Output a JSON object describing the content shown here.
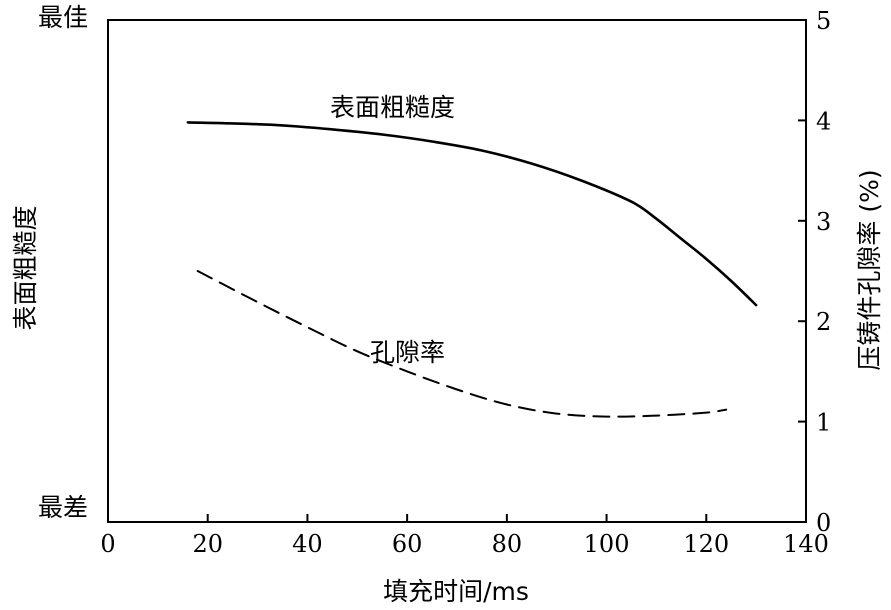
{
  "chart_data": {
    "type": "line",
    "title": "",
    "xlabel": "填充时间/ms",
    "ylabel_left": "表面粗糙度",
    "ylabel_right": "压铸件孔隙率 (%)",
    "left_axis_labels": {
      "top": "最佳",
      "bottom": "最差"
    },
    "xlim": [
      0,
      140
    ],
    "xticks": [
      0,
      20,
      40,
      60,
      80,
      100,
      120,
      140
    ],
    "ylim_right": [
      0,
      5
    ],
    "yticks_right": [
      0,
      1,
      2,
      3,
      4,
      5
    ],
    "grid": false,
    "series": [
      {
        "name": "表面粗糙度",
        "style": "solid",
        "axis": "right",
        "x": [
          16,
          25,
          35,
          45,
          55,
          65,
          75,
          85,
          95,
          105,
          110,
          115,
          120,
          125,
          130
        ],
        "y": [
          3.98,
          3.97,
          3.95,
          3.91,
          3.86,
          3.79,
          3.7,
          3.57,
          3.4,
          3.19,
          3.02,
          2.82,
          2.62,
          2.4,
          2.16
        ]
      },
      {
        "name": "孔隙率",
        "style": "dashed",
        "axis": "right",
        "x": [
          18,
          30,
          40,
          50,
          60,
          70,
          80,
          90,
          100,
          110,
          120,
          124
        ],
        "y": [
          2.5,
          2.19,
          1.94,
          1.7,
          1.5,
          1.32,
          1.17,
          1.08,
          1.05,
          1.06,
          1.09,
          1.12
        ]
      }
    ]
  }
}
